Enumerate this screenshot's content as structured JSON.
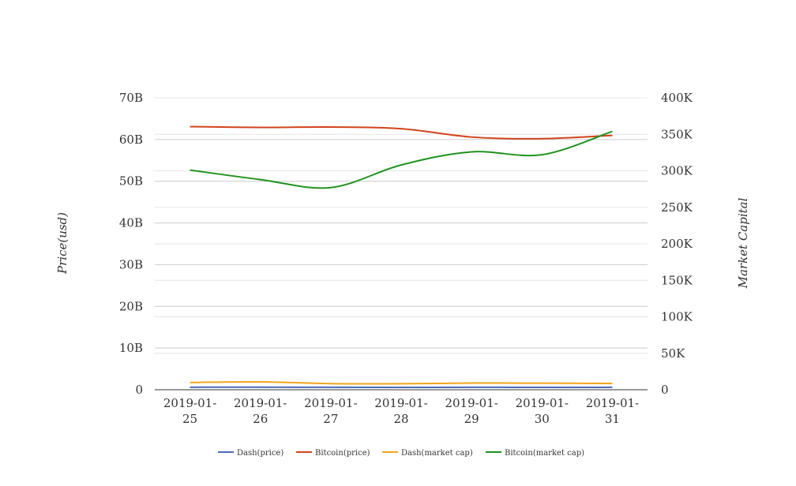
{
  "chart_data": {
    "type": "line",
    "x": [
      "2019-01-25",
      "2019-01-26",
      "2019-01-27",
      "2019-01-28",
      "2019-01-29",
      "2019-01-30",
      "2019-01-31"
    ],
    "x_tick_lines": [
      [
        "2019-01-",
        "25"
      ],
      [
        "2019-01-",
        "26"
      ],
      [
        "2019-01-",
        "27"
      ],
      [
        "2019-01-",
        "28"
      ],
      [
        "2019-01-",
        "29"
      ],
      [
        "2019-01-",
        "30"
      ],
      [
        "2019-01-",
        "31"
      ]
    ],
    "ylabel_left": "Price(usd)",
    "ylabel_right": "Market Capital",
    "ylim_left": [
      0,
      70000000000
    ],
    "ylim_right": [
      0,
      400000
    ],
    "left_ticks": [
      0,
      10000000000,
      20000000000,
      30000000000,
      40000000000,
      50000000000,
      60000000000,
      70000000000
    ],
    "left_tick_labels": [
      "0",
      "10B",
      "20B",
      "30B",
      "40B",
      "50B",
      "60B",
      "70B"
    ],
    "right_ticks": [
      0,
      50000,
      100000,
      150000,
      200000,
      250000,
      300000,
      350000,
      400000
    ],
    "right_tick_labels": [
      "0",
      "50K",
      "100K",
      "150K",
      "200K",
      "250K",
      "300K",
      "350K",
      "400K"
    ],
    "grid": true,
    "legend_position": "bottom",
    "series": [
      {
        "name": "Dash(price)",
        "axis": "left",
        "color": "#4a6bb5",
        "values": [
          600000000,
          620000000,
          580000000,
          560000000,
          590000000,
          570000000,
          580000000
        ]
      },
      {
        "name": "Bitcoin(price)",
        "axis": "left",
        "color": "#d2431c",
        "values": [
          63100000000,
          62900000000,
          63000000000,
          62600000000,
          60600000000,
          60200000000,
          61000000000
        ]
      },
      {
        "name": "Dash(market cap)",
        "axis": "right",
        "color": "#f2a51c",
        "values": [
          10000,
          10800,
          8400,
          8200,
          9200,
          9000,
          8600
        ]
      },
      {
        "name": "Bitcoin(market cap)",
        "axis": "right",
        "color": "#21921f",
        "values": [
          301000,
          288000,
          277000,
          308000,
          326000,
          322000,
          354000
        ]
      }
    ]
  }
}
